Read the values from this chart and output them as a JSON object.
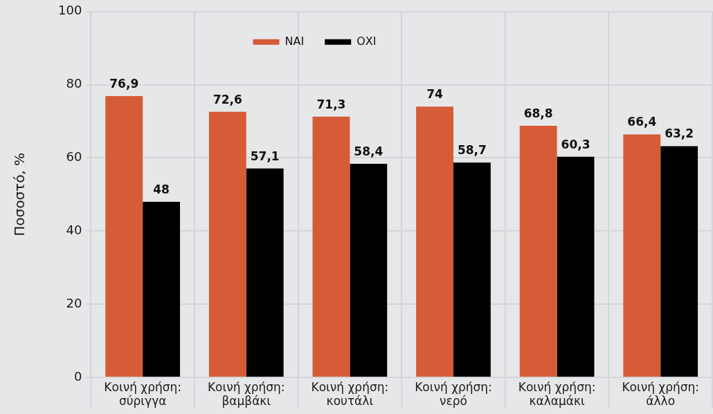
{
  "chart_data": {
    "type": "bar",
    "ylabel": "Ποσοστό, %",
    "categories": [
      "Κοινή χρήση:\nσύριγγα",
      "Κοινή χρήση:\nβαμβάκι",
      "Κοινή χρήση:\nκουτάλι",
      "Κοινή χρήση:\nνερό",
      "Κοινή χρήση:\nκαλαμάκι",
      "Κοινή χρήση:\nάλλο"
    ],
    "series": [
      {
        "name": "ΝΑΙ",
        "color": "#d65b37",
        "values": [
          76.9,
          72.6,
          71.3,
          74,
          68.8,
          66.4
        ],
        "value_labels": [
          "76,9",
          "72,6",
          "71,3",
          "74",
          "68,8",
          "66,4"
        ]
      },
      {
        "name": "ΟΧΙ",
        "color": "#000000",
        "values": [
          48,
          57.1,
          58.4,
          58.7,
          60.3,
          63.2
        ],
        "value_labels": [
          "48",
          "57,1",
          "58,4",
          "58,7",
          "60,3",
          "63,2"
        ]
      }
    ],
    "ylim": [
      0,
      100
    ],
    "yticks": [
      0,
      20,
      40,
      60,
      80,
      100
    ],
    "grid": true,
    "legend": "top"
  }
}
